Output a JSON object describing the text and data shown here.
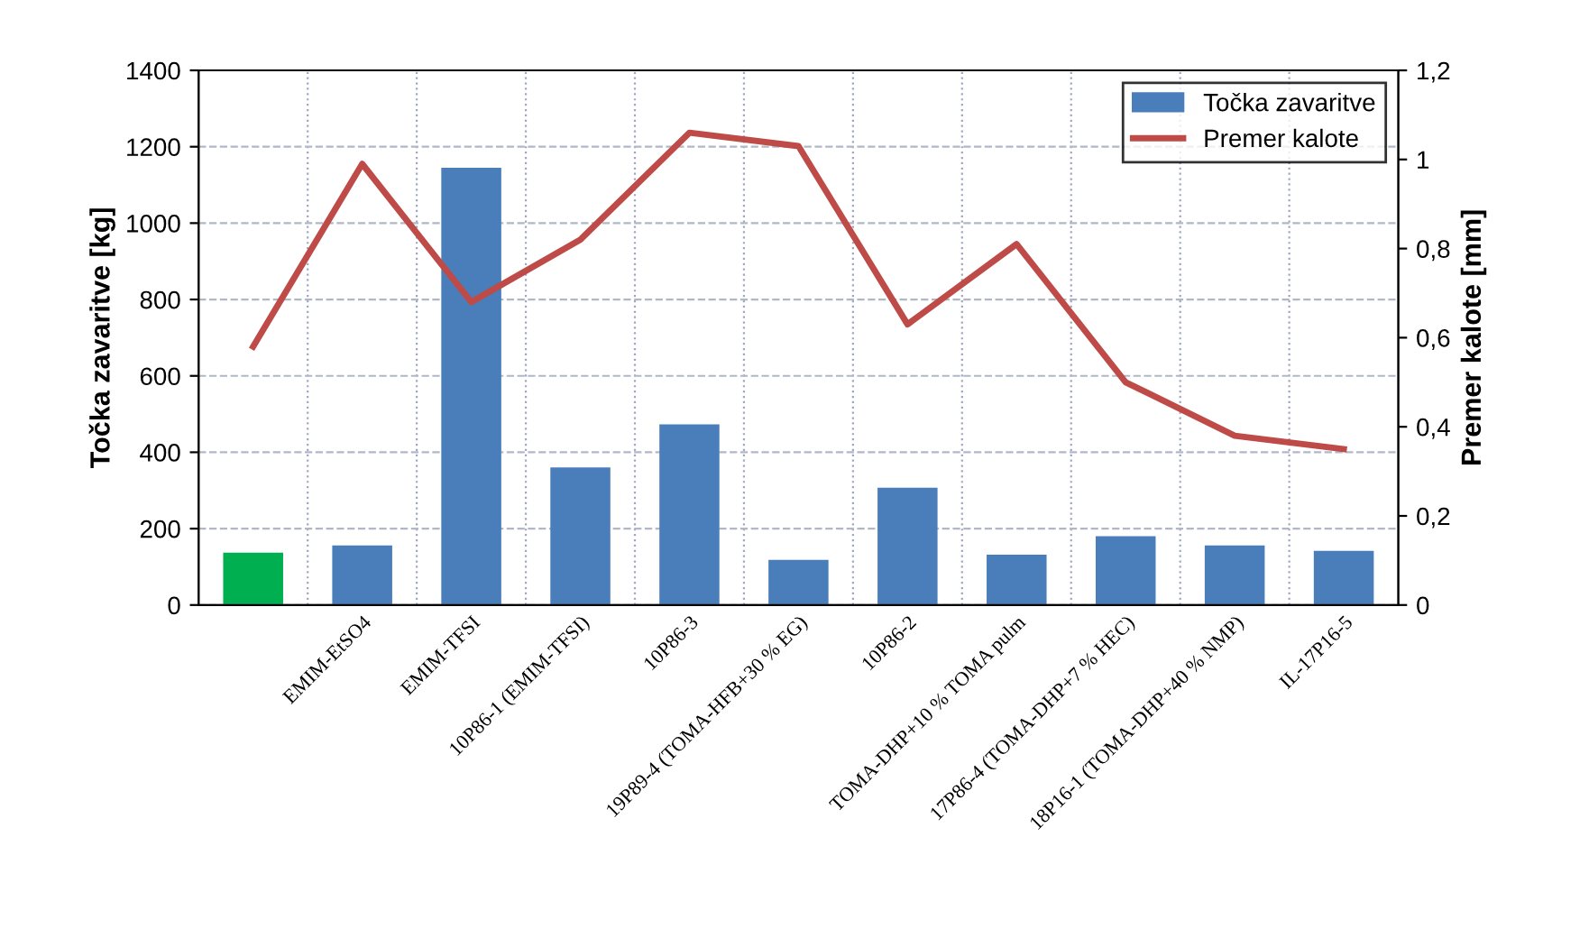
{
  "chart_data": {
    "type": "bar",
    "categories": [
      null,
      "EMIM-EtSO4",
      "EMIM-TFSI",
      "10P86-1 (EMIM-TFSI)",
      "10P86-3",
      "19P89-4 (TOMA-HFB+30 % EG)",
      "10P86-2",
      "TOMA-DHP+10 % TOMA pulm",
      "17P86-4 (TOMA-DHP+7 % HEC)",
      "18P16-1 (TOMA-DHP+40 % NMP)",
      "IL-17P16-5"
    ],
    "series": [
      {
        "name": "Točka zavaritve",
        "color": "#4a7ebb",
        "colors": [
          "#00b050",
          "#4a7ebb",
          "#4a7ebb",
          "#4a7ebb",
          "#4a7ebb",
          "#4a7ebb",
          "#4a7ebb",
          "#4a7ebb",
          "#4a7ebb",
          "#4a7ebb",
          "#4a7ebb"
        ],
        "values": [
          137,
          156,
          1145,
          360,
          473,
          118,
          307,
          132,
          180,
          156,
          142
        ]
      },
      {
        "name": "Premer kalote",
        "type": "line",
        "axis": "y2",
        "color": "#be4b48",
        "values": [
          0.58,
          0.99,
          0.68,
          0.82,
          1.06,
          1.03,
          0.63,
          0.81,
          0.5,
          0.38,
          0.35
        ]
      }
    ],
    "ylabel": "Točka zavaritve [kg]",
    "y2label": "Premer kalote [mm]",
    "ylim": [
      0,
      1400
    ],
    "yticks": [
      0,
      200,
      400,
      600,
      800,
      1000,
      1200,
      1400
    ],
    "y2lim": [
      0,
      1.2
    ],
    "y2ticks": [
      {
        "value": 0,
        "label": "0"
      },
      {
        "value": 0.2,
        "label": "0,2"
      },
      {
        "value": 0.4,
        "label": "0,4"
      },
      {
        "value": 0.6,
        "label": "0,6"
      },
      {
        "value": 0.8,
        "label": "0,8"
      },
      {
        "value": 1,
        "label": "1"
      },
      {
        "value": 1.2,
        "label": "1,2"
      }
    ],
    "grid": true,
    "legend": "top right",
    "line_style": "solid",
    "marker": "none"
  }
}
